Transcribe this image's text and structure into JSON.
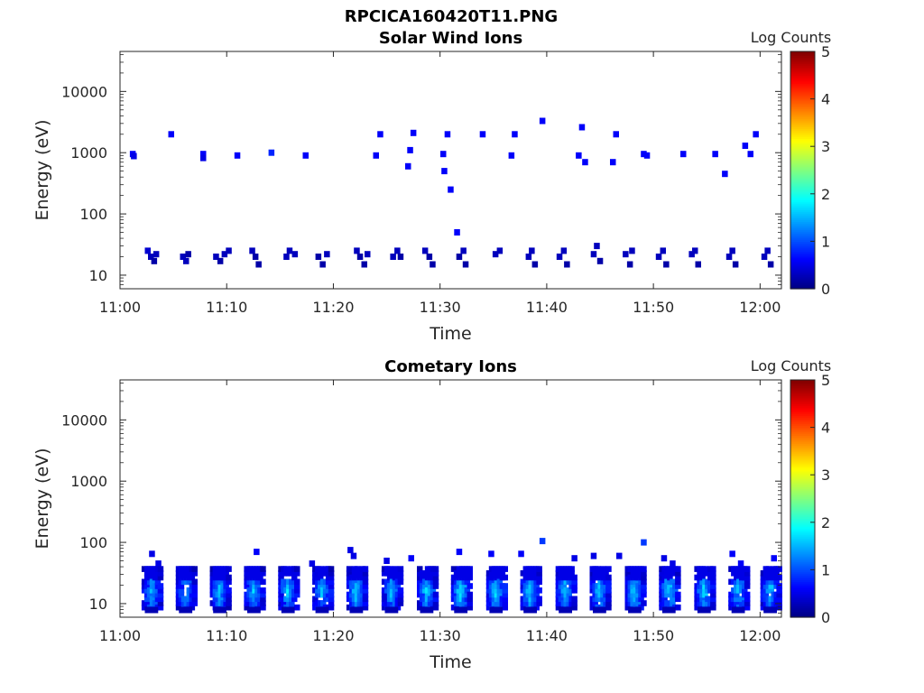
{
  "figure_title": "RPCICA160420T11.PNG",
  "colorbar": {
    "label": "Log Counts",
    "ticks": [
      "0",
      "1",
      "2",
      "3",
      "4",
      "5"
    ],
    "range": [
      0,
      5
    ],
    "colormap": "jet"
  },
  "chart_data": [
    {
      "type": "heatmap",
      "title": "Solar Wind Ions",
      "xlabel": "Time",
      "ylabel": "Energy (eV)",
      "yscale": "log",
      "ylim": [
        6,
        45000
      ],
      "xlim": [
        "11:00",
        "12:02"
      ],
      "x_ticks": [
        "11:00",
        "11:10",
        "11:20",
        "11:30",
        "11:40",
        "11:50",
        "12:00"
      ],
      "y_ticks": [
        "10",
        "100",
        "1000",
        "10000"
      ],
      "clim": [
        0,
        5
      ],
      "points": [
        [
          1.2,
          950,
          0.6
        ],
        [
          1.3,
          880,
          0.5
        ],
        [
          2.6,
          25,
          0.4
        ],
        [
          2.9,
          20,
          0.3
        ],
        [
          3.2,
          17,
          0.2
        ],
        [
          3.4,
          22,
          0.3
        ],
        [
          4.8,
          2000,
          0.6
        ],
        [
          5.9,
          20,
          0.3
        ],
        [
          6.2,
          17,
          0.3
        ],
        [
          6.4,
          22,
          0.2
        ],
        [
          7.8,
          950,
          0.6
        ],
        [
          7.8,
          820,
          0.5
        ],
        [
          9.0,
          20,
          0.3
        ],
        [
          9.4,
          17,
          0.2
        ],
        [
          9.8,
          22,
          0.3
        ],
        [
          10.2,
          25,
          0.3
        ],
        [
          11.0,
          900,
          0.6
        ],
        [
          12.4,
          25,
          0.3
        ],
        [
          12.7,
          20,
          0.2
        ],
        [
          13.0,
          15,
          0.2
        ],
        [
          14.2,
          1000,
          0.8
        ],
        [
          15.6,
          20,
          0.3
        ],
        [
          15.9,
          25,
          0.3
        ],
        [
          16.4,
          22,
          0.3
        ],
        [
          17.4,
          900,
          0.6
        ],
        [
          18.6,
          20,
          0.2
        ],
        [
          19.0,
          15,
          0.2
        ],
        [
          19.4,
          22,
          0.3
        ],
        [
          22.2,
          25,
          0.3
        ],
        [
          22.5,
          20,
          0.2
        ],
        [
          22.9,
          15,
          0.2
        ],
        [
          23.2,
          22,
          0.3
        ],
        [
          24.0,
          900,
          0.6
        ],
        [
          24.4,
          2000,
          0.6
        ],
        [
          25.6,
          20,
          0.3
        ],
        [
          26.0,
          25,
          0.3
        ],
        [
          26.3,
          20,
          0.2
        ],
        [
          27.0,
          600,
          0.6
        ],
        [
          27.2,
          1100,
          0.6
        ],
        [
          27.5,
          2100,
          0.6
        ],
        [
          28.6,
          25,
          0.3
        ],
        [
          29.0,
          20,
          0.2
        ],
        [
          29.3,
          15,
          0.2
        ],
        [
          30.3,
          950,
          0.6
        ],
        [
          30.4,
          500,
          0.6
        ],
        [
          30.7,
          2000,
          0.6
        ],
        [
          31.0,
          250,
          0.6
        ],
        [
          31.6,
          50,
          0.6
        ],
        [
          31.8,
          20,
          0.2
        ],
        [
          32.2,
          25,
          0.3
        ],
        [
          32.4,
          15,
          0.2
        ],
        [
          34.0,
          2000,
          0.6
        ],
        [
          35.2,
          22,
          0.3
        ],
        [
          35.6,
          25,
          0.3
        ],
        [
          36.7,
          900,
          0.6
        ],
        [
          37.0,
          2000,
          0.6
        ],
        [
          38.3,
          20,
          0.3
        ],
        [
          38.6,
          25,
          0.3
        ],
        [
          38.9,
          15,
          0.2
        ],
        [
          39.6,
          3300,
          0.6
        ],
        [
          41.2,
          20,
          0.3
        ],
        [
          41.6,
          25,
          0.3
        ],
        [
          41.9,
          15,
          0.2
        ],
        [
          43.0,
          900,
          0.6
        ],
        [
          43.3,
          2600,
          0.6
        ],
        [
          43.6,
          700,
          0.6
        ],
        [
          44.4,
          22,
          0.3
        ],
        [
          44.7,
          30,
          0.3
        ],
        [
          45.0,
          17,
          0.2
        ],
        [
          46.2,
          700,
          0.6
        ],
        [
          46.5,
          2000,
          0.6
        ],
        [
          47.4,
          22,
          0.3
        ],
        [
          47.8,
          15,
          0.2
        ],
        [
          48.0,
          25,
          0.3
        ],
        [
          49.1,
          950,
          0.6
        ],
        [
          49.4,
          900,
          0.6
        ],
        [
          50.5,
          20,
          0.3
        ],
        [
          50.9,
          25,
          0.3
        ],
        [
          51.2,
          15,
          0.2
        ],
        [
          52.8,
          950,
          0.6
        ],
        [
          53.6,
          22,
          0.3
        ],
        [
          53.9,
          25,
          0.3
        ],
        [
          54.2,
          15,
          0.2
        ],
        [
          55.8,
          950,
          0.6
        ],
        [
          56.7,
          450,
          0.6
        ],
        [
          57.1,
          20,
          0.3
        ],
        [
          57.4,
          25,
          0.3
        ],
        [
          57.7,
          15,
          0.2
        ],
        [
          58.6,
          1300,
          0.6
        ],
        [
          59.1,
          950,
          0.6
        ],
        [
          59.6,
          2000,
          0.6
        ],
        [
          60.4,
          20,
          0.3
        ],
        [
          60.7,
          25,
          0.3
        ],
        [
          61.0,
          15,
          0.2
        ]
      ]
    },
    {
      "type": "heatmap",
      "title": "Cometary Ions",
      "xlabel": "Time",
      "ylabel": "Energy (eV)",
      "yscale": "log",
      "ylim": [
        6,
        45000
      ],
      "xlim": [
        "11:00",
        "12:02"
      ],
      "x_ticks": [
        "11:00",
        "11:10",
        "11:20",
        "11:30",
        "11:40",
        "11:50",
        "12:00"
      ],
      "y_ticks": [
        "10",
        "100",
        "1000",
        "10000"
      ],
      "clim": [
        0,
        5
      ],
      "burst_times_min": [
        3.0,
        6.2,
        9.4,
        12.6,
        15.8,
        19.0,
        22.2,
        25.5,
        28.8,
        32.0,
        35.3,
        38.5,
        41.8,
        45.0,
        48.3,
        51.5,
        54.8,
        58.0,
        61.0
      ],
      "burst_energy_range_eV": [
        8,
        40
      ],
      "burst_peak_log_counts": [
        1.6,
        1.5,
        1.6,
        1.6,
        1.7,
        1.6,
        1.7,
        1.6,
        1.7,
        1.8,
        1.8,
        1.7,
        1.7,
        1.7,
        1.7,
        1.7,
        1.7,
        1.6,
        1.6
      ],
      "points": [
        [
          3.0,
          65,
          0.5
        ],
        [
          3.6,
          45,
          0.5
        ],
        [
          12.8,
          70,
          0.6
        ],
        [
          18.0,
          45,
          0.5
        ],
        [
          21.6,
          75,
          0.5
        ],
        [
          21.9,
          60,
          0.5
        ],
        [
          25.0,
          50,
          0.5
        ],
        [
          27.3,
          55,
          0.6
        ],
        [
          31.8,
          70,
          0.6
        ],
        [
          34.8,
          65,
          0.6
        ],
        [
          37.6,
          65,
          0.6
        ],
        [
          39.6,
          105,
          0.9
        ],
        [
          42.6,
          55,
          0.5
        ],
        [
          44.4,
          60,
          0.5
        ],
        [
          46.8,
          60,
          0.5
        ],
        [
          49.1,
          100,
          0.9
        ],
        [
          51.0,
          55,
          0.5
        ],
        [
          51.8,
          45,
          0.5
        ],
        [
          57.4,
          65,
          0.6
        ],
        [
          58.2,
          45,
          0.6
        ],
        [
          61.3,
          55,
          0.6
        ]
      ]
    }
  ]
}
